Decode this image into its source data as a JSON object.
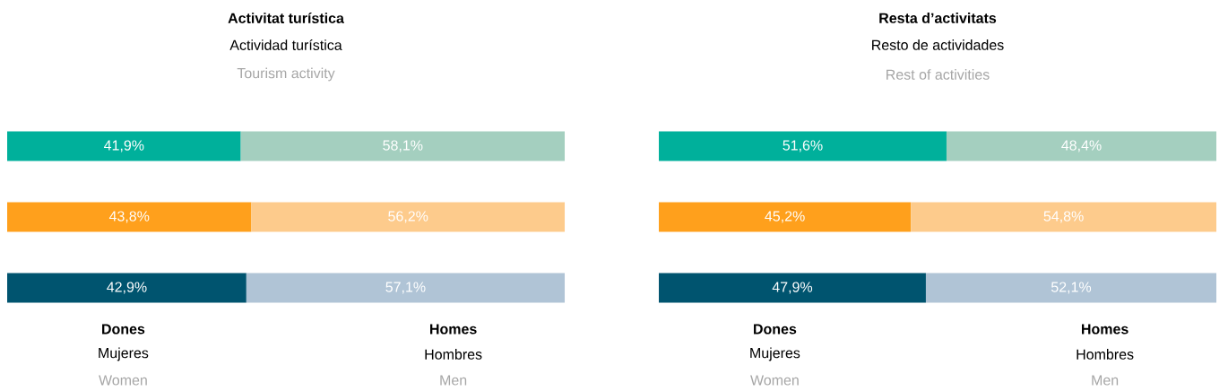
{
  "chart_data": [
    {
      "type": "bar",
      "orientation": "horizontal",
      "stacked": true,
      "title": "Activitat turística",
      "subtitle": "Actividad turística",
      "annotations": [
        "Tourism activity",
        "Dones",
        "Mujeres",
        "Women",
        "Homes",
        "Hombres",
        "Men"
      ],
      "categories": [
        null,
        null,
        null
      ],
      "xlim": [
        0,
        100
      ],
      "tick_labels": false,
      "series": [
        {
          "colors": [
            "#00b09b",
            "#ffa01c",
            "#00546f"
          ],
          "values": [
            41.9,
            43.8,
            42.9
          ],
          "value_labels": [
            "41,9%",
            "43,8%",
            "42,9%"
          ]
        },
        {
          "colors": [
            "#a4cfbf",
            "#fdcb8c",
            "#b0c4d6"
          ],
          "values": [
            58.1,
            56.2,
            57.1
          ],
          "value_labels": [
            "58,1%",
            "56,2%",
            "57,1%"
          ]
        }
      ]
    },
    {
      "type": "bar",
      "orientation": "horizontal",
      "stacked": true,
      "title": "Resta d’activitats",
      "subtitle": "Resto de actividades",
      "annotations": [
        "Rest of activities",
        "Dones",
        "Mujeres",
        "Women",
        "Homes",
        "Hombres",
        "Men"
      ],
      "categories": [
        null,
        null,
        null
      ],
      "xlim": [
        0,
        100
      ],
      "tick_labels": false,
      "series": [
        {
          "colors": [
            "#00b09b",
            "#ffa01c",
            "#00546f"
          ],
          "values": [
            51.6,
            45.2,
            47.9
          ],
          "value_labels": [
            "51,6%",
            "45,2%",
            "47,9%"
          ]
        },
        {
          "colors": [
            "#a4cfbf",
            "#fdcb8c",
            "#b0c4d6"
          ],
          "values": [
            48.4,
            54.8,
            52.1
          ],
          "value_labels": [
            "48,4%",
            "54,8%",
            "52,1%"
          ]
        }
      ]
    }
  ]
}
